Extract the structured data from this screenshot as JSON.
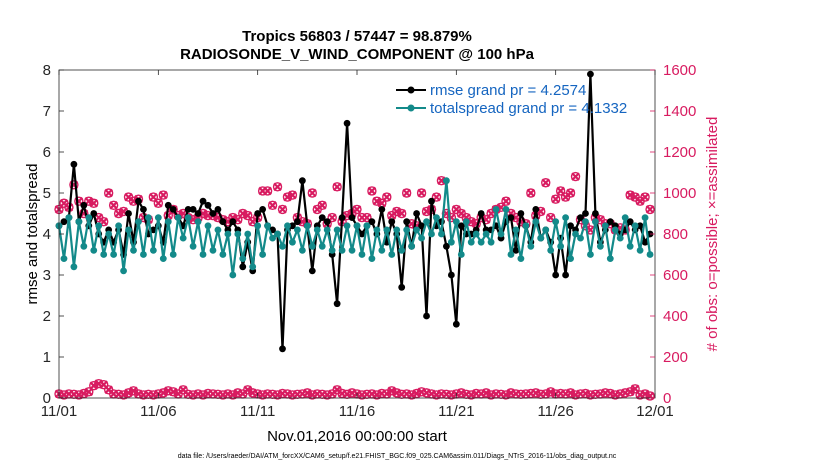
{
  "chart_data": {
    "type": "line",
    "title": "Tropics 56803 / 57447 = 98.879%",
    "subtitle": "RADIOSONDE_V_WIND_COMPONENT @ 100 hPa",
    "xlabel": "Nov.01,2016 00:00:00 start",
    "ylabel": "rmse and totalspread",
    "y2label": "# of obs: o=possible; ×=assimilated",
    "footnote": "data file: /Users/raeder/DAI/ATM_forcXX/CAM6_setup/f.e21.FHIST_BGC.f09_025.CAM6assim.011/Diags_NTrS_2016-11/obs_diag_output.nc",
    "xlim": [
      0,
      30
    ],
    "ylim": [
      0,
      8
    ],
    "y2lim": [
      0,
      1600
    ],
    "xticks": [
      0,
      5,
      10,
      15,
      20,
      25,
      30
    ],
    "xtick_labels": [
      "11/01",
      "11/06",
      "11/11",
      "11/16",
      "11/21",
      "11/26",
      "12/01"
    ],
    "yticks": [
      "0",
      "1",
      "2",
      "3",
      "4",
      "5",
      "6",
      "7",
      "8"
    ],
    "y2ticks": [
      "0",
      "200",
      "400",
      "600",
      "800",
      "1000",
      "1200",
      "1400",
      "1600"
    ],
    "colors": {
      "rmse": "#000000",
      "spread": "#138a8a",
      "obs": "#d81b60",
      "legend_text": "#1565c0"
    },
    "legend": [
      {
        "name": "rmse grand pr = 4.2574",
        "key": "rmse"
      },
      {
        "name": "totalspread grand pr = 4.1332",
        "key": "spread"
      }
    ],
    "legend_position": "top-right",
    "x": [
      0.0,
      0.25,
      0.5,
      0.75,
      1.0,
      1.25,
      1.5,
      1.75,
      2.0,
      2.25,
      2.5,
      2.75,
      3.0,
      3.25,
      3.5,
      3.75,
      4.0,
      4.25,
      4.5,
      4.75,
      5.0,
      5.25,
      5.5,
      5.75,
      6.0,
      6.25,
      6.5,
      6.75,
      7.0,
      7.25,
      7.5,
      7.75,
      8.0,
      8.25,
      8.5,
      8.75,
      9.0,
      9.25,
      9.5,
      9.75,
      10.0,
      10.25,
      10.5,
      10.75,
      11.0,
      11.25,
      11.5,
      11.75,
      12.0,
      12.25,
      12.5,
      12.75,
      13.0,
      13.25,
      13.5,
      13.75,
      14.0,
      14.25,
      14.5,
      14.75,
      15.0,
      15.25,
      15.5,
      15.75,
      16.0,
      16.25,
      16.5,
      16.75,
      17.0,
      17.25,
      17.5,
      17.75,
      18.0,
      18.25,
      18.5,
      18.75,
      19.0,
      19.25,
      19.5,
      19.75,
      20.0,
      20.25,
      20.5,
      20.75,
      21.0,
      21.25,
      21.5,
      21.75,
      22.0,
      22.25,
      22.5,
      22.75,
      23.0,
      23.25,
      23.5,
      23.75,
      24.0,
      24.25,
      24.5,
      24.75,
      25.0,
      25.25,
      25.5,
      25.75,
      26.0,
      26.25,
      26.5,
      26.75,
      27.0,
      27.25,
      27.5,
      27.75,
      28.0,
      28.25,
      28.5,
      28.75,
      29.0,
      29.25,
      29.5,
      29.75
    ],
    "series": [
      {
        "name": "rmse",
        "values": [
          4.2,
          4.3,
          4.4,
          5.7,
          4.3,
          4.7,
          4.2,
          4.5,
          4.0,
          3.8,
          4.1,
          3.8,
          4.1,
          3.5,
          4.5,
          3.8,
          4.8,
          4.6,
          4.0,
          4.1,
          4.2,
          3.8,
          4.7,
          4.6,
          4.4,
          4.2,
          4.6,
          4.6,
          4.5,
          4.8,
          4.7,
          4.5,
          4.6,
          4.3,
          4.1,
          4.3,
          4.1,
          3.2,
          3.8,
          3.1,
          4.5,
          4.6,
          4.2,
          4.1,
          4.0,
          1.2,
          4.1,
          4.2,
          4.3,
          5.3,
          4.2,
          3.1,
          4.2,
          4.4,
          4.3,
          3.5,
          2.3,
          4.4,
          6.7,
          4.4,
          4.2,
          4.0,
          4.2,
          4.3,
          4.0,
          4.6,
          3.8,
          4.3,
          4.0,
          2.7,
          4.3,
          3.7,
          4.5,
          4.2,
          2.0,
          4.8,
          4.2,
          4.3,
          3.7,
          3.0,
          1.8,
          4.2,
          4.0,
          4.0,
          4.1,
          4.5,
          4.1,
          4.1,
          4.2,
          3.9,
          4.3,
          4.4,
          3.6,
          4.5,
          4.2,
          3.8,
          4.6,
          3.9,
          4.1,
          3.8,
          3.0,
          3.9,
          3.0,
          4.2,
          4.1,
          4.4,
          4.5,
          7.9,
          4.5,
          3.8,
          4.1,
          4.3,
          4.2,
          4.0,
          4.1,
          4.3,
          4.1,
          4.2,
          3.8,
          4.0
        ]
      },
      {
        "name": "totalspread",
        "values": [
          4.2,
          3.4,
          4.4,
          3.2,
          4.3,
          3.7,
          4.4,
          3.6,
          4.2,
          3.5,
          4.0,
          3.5,
          4.2,
          3.1,
          4.1,
          3.6,
          4.3,
          3.5,
          4.4,
          3.6,
          4.4,
          3.4,
          4.3,
          3.5,
          4.4,
          3.9,
          4.4,
          3.7,
          4.3,
          3.5,
          4.2,
          3.6,
          4.1,
          3.5,
          4.0,
          3.0,
          4.0,
          3.4,
          4.0,
          3.2,
          4.2,
          3.5,
          4.2,
          3.9,
          4.0,
          3.7,
          4.2,
          3.8,
          4.1,
          3.6,
          4.2,
          3.7,
          4.1,
          3.7,
          4.1,
          3.6,
          4.1,
          3.6,
          4.2,
          3.6,
          4.2,
          3.5,
          4.2,
          3.4,
          4.1,
          3.6,
          4.1,
          3.5,
          4.1,
          3.6,
          4.1,
          3.7,
          4.1,
          3.9,
          4.3,
          4.0,
          4.4,
          4.0,
          5.3,
          3.8,
          4.3,
          3.5,
          4.3,
          3.8,
          4.0,
          3.8,
          4.0,
          3.8,
          4.6,
          4.0,
          4.6,
          3.5,
          4.1,
          3.4,
          4.2,
          3.7,
          4.3,
          3.9,
          4.1,
          3.6,
          4.3,
          3.7,
          4.4,
          3.4,
          4.0,
          3.9,
          4.3,
          3.5,
          4.3,
          3.7,
          4.2,
          3.4,
          4.1,
          3.9,
          4.4,
          3.7,
          4.2,
          3.6,
          4.4,
          3.5
        ]
      },
      {
        "name": "obs_possible",
        "values": [
          920,
          950,
          930,
          1040,
          960,
          900,
          960,
          950,
          880,
          860,
          1000,
          940,
          900,
          910,
          980,
          960,
          970,
          880,
          870,
          980,
          950,
          990,
          890,
          920,
          890,
          900,
          880,
          870,
          880,
          900,
          890,
          890,
          880,
          870,
          860,
          880,
          870,
          900,
          890,
          860,
          880,
          1010,
          1010,
          940,
          1030,
          920,
          980,
          990,
          880,
          860,
          850,
          1000,
          920,
          940,
          850,
          880,
          1030,
          860,
          890,
          900,
          920,
          880,
          880,
          1010,
          960,
          950,
          980,
          890,
          910,
          900,
          1000,
          850,
          840,
          1000,
          910,
          920,
          980,
          1060,
          900,
          880,
          920,
          900,
          880,
          860,
          850,
          880,
          870,
          900,
          920,
          930,
          960,
          900,
          880,
          860,
          850,
          1000,
          890,
          910,
          1050,
          880,
          970,
          1010,
          980,
          1000,
          1080,
          870,
          840,
          820,
          880,
          870,
          850,
          850,
          820,
          830,
          820,
          990,
          980,
          960,
          980,
          920
        ]
      },
      {
        "name": "obs_assimilated",
        "values": [
          920,
          950,
          930,
          1040,
          960,
          900,
          960,
          950,
          880,
          860,
          1000,
          940,
          900,
          910,
          980,
          960,
          970,
          880,
          870,
          980,
          950,
          990,
          890,
          920,
          890,
          900,
          880,
          870,
          880,
          900,
          890,
          890,
          880,
          870,
          860,
          880,
          870,
          900,
          890,
          860,
          880,
          1010,
          1010,
          940,
          1030,
          920,
          980,
          990,
          880,
          860,
          850,
          1000,
          920,
          940,
          850,
          880,
          1030,
          860,
          890,
          900,
          920,
          880,
          880,
          1010,
          960,
          950,
          980,
          890,
          910,
          900,
          1000,
          850,
          840,
          1000,
          910,
          920,
          980,
          1060,
          900,
          880,
          920,
          900,
          880,
          860,
          850,
          880,
          870,
          900,
          920,
          930,
          960,
          900,
          880,
          860,
          850,
          1000,
          890,
          910,
          1050,
          880,
          970,
          1010,
          980,
          1000,
          1080,
          870,
          840,
          820,
          880,
          870,
          850,
          850,
          820,
          830,
          820,
          990,
          980,
          960,
          980,
          920
        ]
      },
      {
        "name": "obs_possible_low",
        "values": [
          20,
          15,
          20,
          18,
          15,
          22,
          30,
          60,
          70,
          65,
          40,
          20,
          18,
          15,
          25,
          35,
          20,
          15,
          18,
          15,
          20,
          25,
          35,
          30,
          20,
          40,
          18,
          15,
          20,
          15,
          22,
          20,
          18,
          15,
          20,
          15,
          25,
          20,
          40,
          25,
          20,
          15,
          20,
          18,
          15,
          22,
          20,
          15,
          18,
          20,
          25,
          15,
          20,
          18,
          15,
          20,
          40,
          22,
          18,
          25,
          20,
          15,
          18,
          20,
          15,
          22,
          20,
          35,
          25,
          18,
          20,
          15,
          22,
          30,
          25,
          20,
          15,
          20,
          18,
          15,
          20,
          25,
          18,
          15,
          22,
          20,
          25,
          15,
          20,
          18,
          15,
          25,
          20,
          18,
          20,
          22,
          25,
          18,
          20,
          30,
          20,
          22,
          20,
          25,
          15,
          20,
          22,
          15,
          18,
          20,
          25,
          22,
          15,
          20,
          25,
          30,
          45,
          15,
          20,
          10
        ]
      },
      {
        "name": "obs_assimilated_low",
        "values": [
          20,
          15,
          20,
          18,
          15,
          22,
          30,
          60,
          70,
          65,
          40,
          20,
          18,
          15,
          25,
          35,
          20,
          15,
          18,
          15,
          20,
          25,
          35,
          30,
          20,
          40,
          18,
          15,
          20,
          15,
          22,
          20,
          18,
          15,
          20,
          15,
          25,
          20,
          40,
          25,
          20,
          15,
          20,
          18,
          15,
          22,
          20,
          15,
          18,
          20,
          25,
          15,
          20,
          18,
          15,
          20,
          40,
          22,
          18,
          25,
          20,
          15,
          18,
          20,
          15,
          22,
          20,
          35,
          25,
          18,
          20,
          15,
          22,
          30,
          25,
          20,
          15,
          20,
          18,
          15,
          20,
          25,
          18,
          15,
          22,
          20,
          25,
          15,
          20,
          18,
          15,
          25,
          20,
          18,
          20,
          22,
          25,
          18,
          20,
          30,
          20,
          22,
          20,
          25,
          15,
          20,
          22,
          15,
          18,
          20,
          25,
          22,
          15,
          20,
          25,
          30,
          45,
          15,
          20,
          10
        ]
      }
    ]
  }
}
